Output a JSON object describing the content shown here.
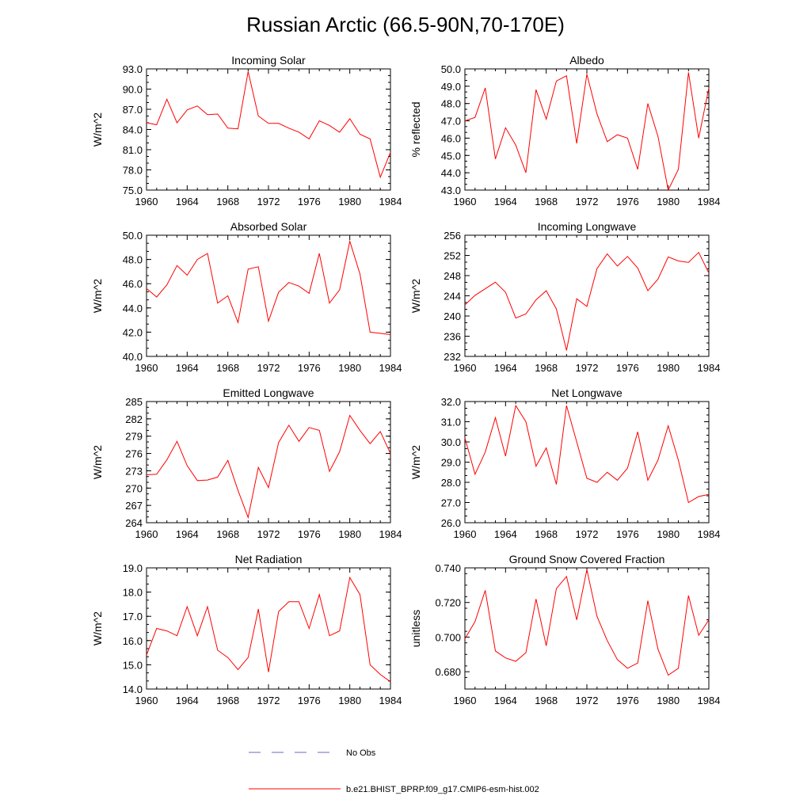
{
  "figure": {
    "title": "Russian Arctic (66.5-90N,70-170E)",
    "line_color": "#ff0000",
    "legend": {
      "entries": [
        {
          "label": "No Obs",
          "style": "dashed",
          "color": "#6a6acd"
        },
        {
          "label": "b.e21.BHIST_BPRP.f09_g17.CMIP6-esm-hist.002",
          "style": "solid",
          "color": "#ff0000"
        }
      ]
    }
  },
  "chart_data": [
    {
      "type": "line",
      "title": "Incoming Solar",
      "ylabel": "W/m^2",
      "xlabel": "",
      "xlim": [
        1960,
        1984
      ],
      "ylim": [
        75.0,
        93.0
      ],
      "xticks": [
        "1960",
        "1964",
        "1968",
        "1972",
        "1976",
        "1980",
        "1984"
      ],
      "yticks": [
        "75.0",
        "78.0",
        "81.0",
        "84.0",
        "87.0",
        "90.0",
        "93.0"
      ],
      "series": [
        {
          "name": "b.e21.BHIST_BPRP.f09_g17.CMIP6-esm-hist.002",
          "x": [
            1960,
            1961,
            1962,
            1963,
            1964,
            1965,
            1966,
            1967,
            1968,
            1969,
            1970,
            1971,
            1972,
            1973,
            1974,
            1975,
            1976,
            1977,
            1978,
            1979,
            1980,
            1981,
            1982,
            1983,
            1984
          ],
          "values": [
            85.0,
            84.7,
            88.5,
            85.0,
            86.9,
            87.5,
            86.2,
            86.3,
            84.2,
            84.1,
            92.6,
            86.0,
            84.9,
            84.9,
            84.2,
            83.6,
            82.6,
            85.3,
            84.6,
            83.6,
            85.6,
            83.3,
            82.6,
            76.9,
            80.6
          ]
        }
      ]
    },
    {
      "type": "line",
      "title": "Albedo",
      "ylabel": "% reflected",
      "xlabel": "",
      "xlim": [
        1960,
        1984
      ],
      "ylim": [
        43.0,
        50.0
      ],
      "xticks": [
        "1960",
        "1964",
        "1968",
        "1972",
        "1976",
        "1980",
        "1984"
      ],
      "yticks": [
        "43.0",
        "44.0",
        "45.0",
        "46.0",
        "47.0",
        "48.0",
        "49.0",
        "50.0"
      ],
      "series": [
        {
          "name": "b.e21.BHIST_BPRP.f09_g17.CMIP6-esm-hist.002",
          "x": [
            1960,
            1961,
            1962,
            1963,
            1964,
            1965,
            1966,
            1967,
            1968,
            1969,
            1970,
            1971,
            1972,
            1973,
            1974,
            1975,
            1976,
            1977,
            1978,
            1979,
            1980,
            1981,
            1982,
            1983,
            1984
          ],
          "values": [
            47.0,
            47.2,
            48.9,
            44.8,
            46.6,
            45.6,
            44.0,
            48.8,
            47.1,
            49.3,
            49.6,
            45.7,
            49.7,
            47.4,
            45.8,
            46.2,
            46.0,
            44.2,
            48.0,
            46.1,
            43.0,
            44.2,
            49.8,
            46.0,
            48.9
          ]
        }
      ]
    },
    {
      "type": "line",
      "title": "Absorbed Solar",
      "ylabel": "W/m^2",
      "xlabel": "",
      "xlim": [
        1960,
        1984
      ],
      "ylim": [
        40.0,
        50.0
      ],
      "xticks": [
        "1960",
        "1964",
        "1968",
        "1972",
        "1976",
        "1980",
        "1984"
      ],
      "yticks": [
        "40.0",
        "42.0",
        "44.0",
        "46.0",
        "48.0",
        "50.0"
      ],
      "series": [
        {
          "name": "b.e21.BHIST_BPRP.f09_g17.CMIP6-esm-hist.002",
          "x": [
            1960,
            1961,
            1962,
            1963,
            1964,
            1965,
            1966,
            1967,
            1968,
            1969,
            1970,
            1971,
            1972,
            1973,
            1974,
            1975,
            1976,
            1977,
            1978,
            1979,
            1980,
            1981,
            1982,
            1983,
            1984
          ],
          "values": [
            45.6,
            44.9,
            45.9,
            47.5,
            46.7,
            48.0,
            48.5,
            44.4,
            45.0,
            42.8,
            47.2,
            47.4,
            42.9,
            45.3,
            46.1,
            45.8,
            45.2,
            48.5,
            44.4,
            45.5,
            49.5,
            46.8,
            42.0,
            41.9,
            41.8
          ]
        }
      ]
    },
    {
      "type": "line",
      "title": "Incoming Longwave",
      "ylabel": "W/m^2",
      "xlabel": "",
      "xlim": [
        1960,
        1984
      ],
      "ylim": [
        232,
        256
      ],
      "xticks": [
        "1960",
        "1964",
        "1968",
        "1972",
        "1976",
        "1980",
        "1984"
      ],
      "yticks": [
        "232",
        "236",
        "240",
        "244",
        "248",
        "252",
        "256"
      ],
      "series": [
        {
          "name": "b.e21.BHIST_BPRP.f09_g17.CMIP6-esm-hist.002",
          "x": [
            1960,
            1961,
            1962,
            1963,
            1964,
            1965,
            1966,
            1967,
            1968,
            1969,
            1970,
            1971,
            1972,
            1973,
            1974,
            1975,
            1976,
            1977,
            1978,
            1979,
            1980,
            1981,
            1982,
            1983,
            1984
          ],
          "values": [
            242.2,
            244.1,
            245.4,
            246.7,
            244.7,
            239.6,
            240.4,
            243.2,
            245.0,
            241.4,
            233.2,
            243.4,
            241.9,
            249.4,
            252.3,
            249.9,
            251.8,
            249.5,
            245.0,
            247.3,
            251.7,
            250.9,
            250.6,
            252.6,
            248.5
          ]
        }
      ]
    },
    {
      "type": "line",
      "title": "Emitted Longwave",
      "ylabel": "W/m^2",
      "xlabel": "",
      "xlim": [
        1960,
        1984
      ],
      "ylim": [
        264,
        285
      ],
      "xticks": [
        "1960",
        "1964",
        "1968",
        "1972",
        "1976",
        "1980",
        "1984"
      ],
      "yticks": [
        "264",
        "267",
        "270",
        "273",
        "276",
        "279",
        "282",
        "285"
      ],
      "series": [
        {
          "name": "b.e21.BHIST_BPRP.f09_g17.CMIP6-esm-hist.002",
          "x": [
            1960,
            1961,
            1962,
            1963,
            1964,
            1965,
            1966,
            1967,
            1968,
            1969,
            1970,
            1971,
            1972,
            1973,
            1974,
            1975,
            1976,
            1977,
            1978,
            1979,
            1980,
            1981,
            1982,
            1983,
            1984
          ],
          "values": [
            272.3,
            272.4,
            274.9,
            278.1,
            273.9,
            271.3,
            271.4,
            271.9,
            274.8,
            269.6,
            264.9,
            273.6,
            270.1,
            277.9,
            280.9,
            278.1,
            280.5,
            280.0,
            272.9,
            276.3,
            282.6,
            280.0,
            277.7,
            279.8,
            276.0
          ]
        }
      ]
    },
    {
      "type": "line",
      "title": "Net Longwave",
      "ylabel": "W/m^2",
      "xlabel": "",
      "xlim": [
        1960,
        1984
      ],
      "ylim": [
        26.0,
        32.0
      ],
      "xticks": [
        "1960",
        "1964",
        "1968",
        "1972",
        "1976",
        "1980",
        "1984"
      ],
      "yticks": [
        "26.0",
        "27.0",
        "28.0",
        "29.0",
        "30.0",
        "31.0",
        "32.0"
      ],
      "series": [
        {
          "name": "b.e21.BHIST_BPRP.f09_g17.CMIP6-esm-hist.002",
          "x": [
            1960,
            1961,
            1962,
            1963,
            1964,
            1965,
            1966,
            1967,
            1968,
            1969,
            1970,
            1971,
            1972,
            1973,
            1974,
            1975,
            1976,
            1977,
            1978,
            1979,
            1980,
            1981,
            1982,
            1983,
            1984
          ],
          "values": [
            30.2,
            28.4,
            29.5,
            31.2,
            29.3,
            31.8,
            31.0,
            28.8,
            29.7,
            27.9,
            31.8,
            30.0,
            28.2,
            28.0,
            28.5,
            28.1,
            28.7,
            30.5,
            28.1,
            29.1,
            30.8,
            29.1,
            27.0,
            27.3,
            27.4
          ]
        }
      ]
    },
    {
      "type": "line",
      "title": "Net Radiation",
      "ylabel": "W/m^2",
      "xlabel": "",
      "xlim": [
        1960,
        1984
      ],
      "ylim": [
        14.0,
        19.0
      ],
      "xticks": [
        "1960",
        "1964",
        "1968",
        "1972",
        "1976",
        "1980",
        "1984"
      ],
      "yticks": [
        "14.0",
        "15.0",
        "16.0",
        "17.0",
        "18.0",
        "19.0"
      ],
      "series": [
        {
          "name": "b.e21.BHIST_BPRP.f09_g17.CMIP6-esm-hist.002",
          "x": [
            1960,
            1961,
            1962,
            1963,
            1964,
            1965,
            1966,
            1967,
            1968,
            1969,
            1970,
            1971,
            1972,
            1973,
            1974,
            1975,
            1976,
            1977,
            1978,
            1979,
            1980,
            1981,
            1982,
            1983,
            1984
          ],
          "values": [
            15.4,
            16.5,
            16.4,
            16.2,
            17.4,
            16.2,
            17.4,
            15.6,
            15.3,
            14.8,
            15.3,
            17.3,
            14.7,
            17.2,
            17.6,
            17.6,
            16.5,
            17.9,
            16.2,
            16.4,
            18.6,
            17.9,
            15.0,
            14.6,
            14.3
          ]
        }
      ]
    },
    {
      "type": "line",
      "title": "Ground Snow Covered Fraction",
      "ylabel": "unitless",
      "xlabel": "",
      "xlim": [
        1960,
        1984
      ],
      "ylim": [
        0.67,
        0.74
      ],
      "xticks": [
        "1960",
        "1964",
        "1968",
        "1972",
        "1976",
        "1980",
        "1984"
      ],
      "yticks": [
        "0.680",
        "0.700",
        "0.720",
        "0.740"
      ],
      "series": [
        {
          "name": "b.e21.BHIST_BPRP.f09_g17.CMIP6-esm-hist.002",
          "x": [
            1960,
            1961,
            1962,
            1963,
            1964,
            1965,
            1966,
            1967,
            1968,
            1969,
            1970,
            1971,
            1972,
            1973,
            1974,
            1975,
            1976,
            1977,
            1978,
            1979,
            1980,
            1981,
            1982,
            1983,
            1984
          ],
          "values": [
            0.699,
            0.709,
            0.727,
            0.692,
            0.688,
            0.686,
            0.691,
            0.722,
            0.695,
            0.728,
            0.735,
            0.71,
            0.739,
            0.712,
            0.698,
            0.687,
            0.682,
            0.685,
            0.721,
            0.693,
            0.678,
            0.682,
            0.724,
            0.701,
            0.71
          ]
        }
      ]
    }
  ]
}
